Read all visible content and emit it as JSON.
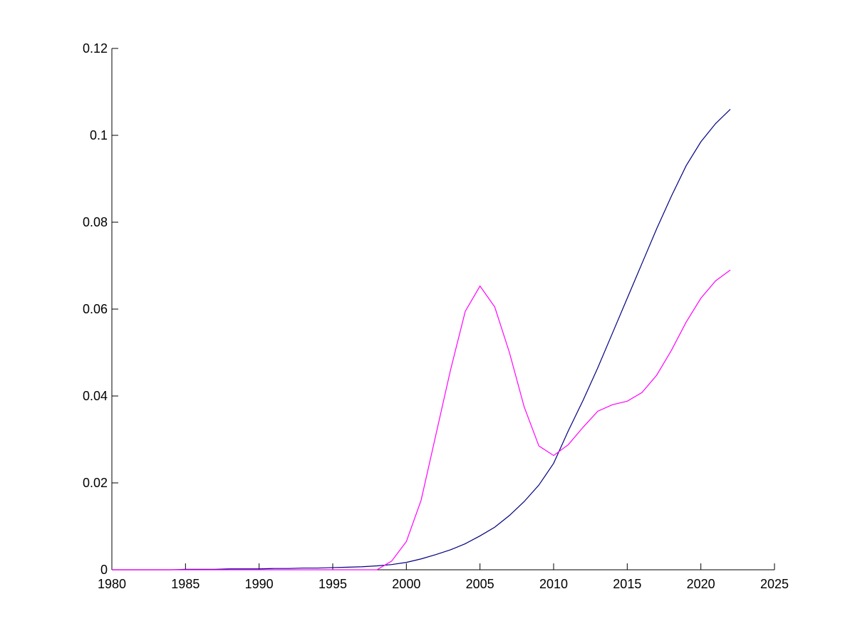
{
  "chart_data": {
    "type": "line",
    "x": [
      1980,
      1981,
      1982,
      1983,
      1984,
      1985,
      1986,
      1987,
      1988,
      1989,
      1990,
      1991,
      1992,
      1993,
      1994,
      1995,
      1996,
      1997,
      1998,
      1999,
      2000,
      2001,
      2002,
      2003,
      2004,
      2005,
      2006,
      2007,
      2008,
      2009,
      2010,
      2011,
      2012,
      2013,
      2014,
      2015,
      2016,
      2017,
      2018,
      2019,
      2020,
      2021,
      2022
    ],
    "series": [
      {
        "color": "#000080",
        "values": [
          0,
          0,
          0,
          0,
          0,
          0.0001,
          0.0001,
          0.0001,
          0.0002,
          0.0002,
          0.0002,
          0.0003,
          0.0003,
          0.0004,
          0.0004,
          0.0005,
          0.0006,
          0.0007,
          0.0009,
          0.0012,
          0.0017,
          0.0025,
          0.0035,
          0.0046,
          0.006,
          0.0078,
          0.0098,
          0.0125,
          0.0157,
          0.0195,
          0.0245,
          0.032,
          0.039,
          0.0465,
          0.0545,
          0.0625,
          0.0705,
          0.0785,
          0.086,
          0.093,
          0.0985,
          0.1027,
          0.106
        ]
      },
      {
        "color": "#ff00ff",
        "values": [
          0,
          0,
          0,
          0,
          0,
          0,
          0,
          0,
          0,
          0,
          0,
          0,
          0,
          0,
          0,
          0,
          0,
          0,
          0,
          0.002,
          0.0065,
          0.016,
          0.031,
          0.046,
          0.0595,
          0.0653,
          0.0605,
          0.05,
          0.0375,
          0.0285,
          0.0263,
          0.0288,
          0.0328,
          0.0365,
          0.038,
          0.0388,
          0.0408,
          0.0448,
          0.0505,
          0.057,
          0.0625,
          0.0665,
          0.069
        ]
      }
    ],
    "xlim": [
      1980,
      2025
    ],
    "xticks": [
      1980,
      1985,
      1990,
      1995,
      2000,
      2005,
      2010,
      2015,
      2020,
      2025
    ],
    "ylim": [
      0,
      0.12
    ],
    "yticks": [
      0,
      0.02,
      0.04,
      0.06,
      0.08,
      0.1,
      0.12
    ],
    "grid": false
  }
}
